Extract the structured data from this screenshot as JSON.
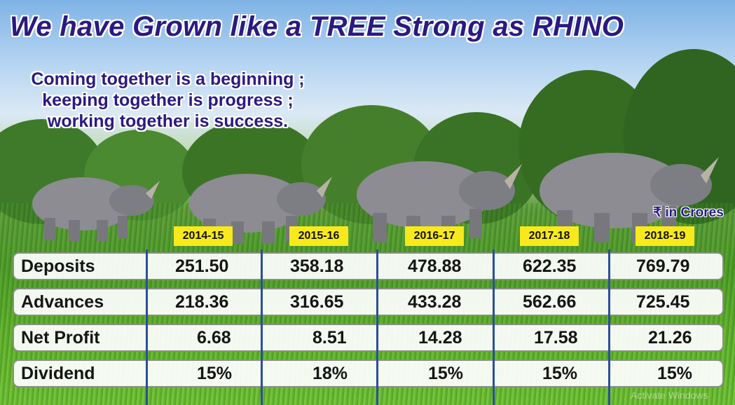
{
  "title": "We have Grown like a TREE Strong as RHINO",
  "quote": {
    "lines": [
      "Coming together is a beginning ;",
      "keeping together is progress ;",
      "working together is success."
    ]
  },
  "unit_note": "₹ in Crores",
  "years": [
    "2014-15",
    "2015-16",
    "2016-17",
    "2017-18",
    "2018-19"
  ],
  "rows": [
    {
      "label": "Deposits",
      "values": [
        "251.50",
        "358.18",
        "478.88",
        "622.35",
        "769.79"
      ]
    },
    {
      "label": "Advances",
      "values": [
        "218.36",
        "316.65",
        "433.28",
        "562.66",
        "725.45"
      ]
    },
    {
      "label": "Net Profit",
      "values": [
        "6.68",
        "8.51",
        "14.28",
        "17.58",
        "21.26"
      ]
    },
    {
      "label": "Dividend",
      "values": [
        "15%",
        "18%",
        "15%",
        "15%",
        "15%"
      ]
    }
  ],
  "watermark": "Activate Windows",
  "colors": {
    "title": "#2a1a82",
    "year_badge": "#f7e91c",
    "divider": "#2a4f9a"
  }
}
